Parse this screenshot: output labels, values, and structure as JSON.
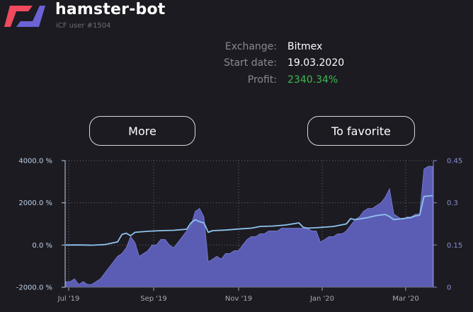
{
  "app": {
    "title": "hamster-bot",
    "subtitle": "iCF user #1504",
    "logo_colors": [
      "#f04a5e",
      "#6b63d6"
    ]
  },
  "info": {
    "exchange_label": "Exchange:",
    "exchange_value": "Bitmex",
    "start_label": "Start date:",
    "start_value": "19.03.2020",
    "profit_label": "Profit:",
    "profit_value": "2340.34%"
  },
  "buttons": {
    "more": "More",
    "favorite": "To favorite"
  },
  "chart_data": {
    "type": "area",
    "x_ticks": [
      "Jul '19",
      "Sep '19",
      "Nov '19",
      "Jan '20",
      "Mar '20"
    ],
    "y_left_ticks": [
      "4000.0 %",
      "2000.0 %",
      "0.0 %",
      "-2000.0 %"
    ],
    "y_right_ticks": [
      "0.45",
      "0.3",
      "0.15",
      "0"
    ],
    "y_left_range": [
      -2000,
      4000
    ],
    "y_right_range": [
      0,
      0.45
    ],
    "grid": true,
    "series": [
      {
        "axis": "right",
        "style": "area",
        "color": "#5b5db5",
        "points": [
          [
            0,
            0.02
          ],
          [
            1,
            0.02
          ],
          [
            2,
            0.03
          ],
          [
            3,
            0.01
          ],
          [
            4,
            0.02
          ],
          [
            5,
            0.01
          ],
          [
            6,
            0.01
          ],
          [
            7,
            0.02
          ],
          [
            8,
            0.03
          ],
          [
            9,
            0.05
          ],
          [
            10,
            0.07
          ],
          [
            11,
            0.09
          ],
          [
            12,
            0.11
          ],
          [
            13,
            0.12
          ],
          [
            14,
            0.14
          ],
          [
            15,
            0.18
          ],
          [
            16,
            0.16
          ],
          [
            17,
            0.11
          ],
          [
            18,
            0.12
          ],
          [
            19,
            0.13
          ],
          [
            20,
            0.15
          ],
          [
            21,
            0.15
          ],
          [
            22,
            0.17
          ],
          [
            23,
            0.17
          ],
          [
            24,
            0.15
          ],
          [
            25,
            0.14
          ],
          [
            26,
            0.16
          ],
          [
            27,
            0.18
          ],
          [
            28,
            0.2
          ],
          [
            29,
            0.22
          ],
          [
            30,
            0.27
          ],
          [
            31,
            0.28
          ],
          [
            32,
            0.25
          ],
          [
            33,
            0.09
          ],
          [
            34,
            0.1
          ],
          [
            35,
            0.11
          ],
          [
            36,
            0.1
          ],
          [
            37,
            0.12
          ],
          [
            38,
            0.12
          ],
          [
            39,
            0.13
          ],
          [
            40,
            0.13
          ],
          [
            41,
            0.15
          ],
          [
            42,
            0.17
          ],
          [
            43,
            0.18
          ],
          [
            44,
            0.18
          ],
          [
            45,
            0.19
          ],
          [
            46,
            0.19
          ],
          [
            47,
            0.2
          ],
          [
            48,
            0.2
          ],
          [
            49,
            0.2
          ],
          [
            50,
            0.21
          ],
          [
            51,
            0.21
          ],
          [
            52,
            0.21
          ],
          [
            53,
            0.21
          ],
          [
            54,
            0.21
          ],
          [
            55,
            0.21
          ],
          [
            56,
            0.21
          ],
          [
            57,
            0.2
          ],
          [
            58,
            0.2
          ],
          [
            59,
            0.16
          ],
          [
            60,
            0.17
          ],
          [
            61,
            0.18
          ],
          [
            62,
            0.18
          ],
          [
            63,
            0.19
          ],
          [
            64,
            0.19
          ],
          [
            65,
            0.2
          ],
          [
            66,
            0.22
          ],
          [
            67,
            0.24
          ],
          [
            68,
            0.25
          ],
          [
            69,
            0.27
          ],
          [
            70,
            0.28
          ],
          [
            71,
            0.28
          ],
          [
            72,
            0.29
          ],
          [
            73,
            0.3
          ],
          [
            74,
            0.32
          ],
          [
            75,
            0.35
          ],
          [
            76,
            0.26
          ],
          [
            77,
            0.25
          ],
          [
            78,
            0.24
          ],
          [
            79,
            0.25
          ],
          [
            80,
            0.25
          ],
          [
            81,
            0.26
          ],
          [
            82,
            0.26
          ],
          [
            83,
            0.42
          ],
          [
            84,
            0.43
          ],
          [
            85,
            0.43
          ]
        ]
      },
      {
        "axis": "left",
        "style": "line",
        "color": "#8ec3ee",
        "points": [
          [
            0,
            0
          ],
          [
            3,
            5
          ],
          [
            6,
            -10
          ],
          [
            9,
            20
          ],
          [
            12,
            150
          ],
          [
            13,
            500
          ],
          [
            14,
            560
          ],
          [
            15,
            440
          ],
          [
            16,
            600
          ],
          [
            19,
            650
          ],
          [
            22,
            680
          ],
          [
            25,
            700
          ],
          [
            28,
            750
          ],
          [
            29,
            1050
          ],
          [
            30,
            1200
          ],
          [
            31,
            1100
          ],
          [
            32,
            1050
          ],
          [
            33,
            600
          ],
          [
            34,
            680
          ],
          [
            37,
            710
          ],
          [
            40,
            760
          ],
          [
            43,
            800
          ],
          [
            45,
            880
          ],
          [
            48,
            900
          ],
          [
            51,
            950
          ],
          [
            54,
            1050
          ],
          [
            55,
            840
          ],
          [
            56,
            800
          ],
          [
            58,
            820
          ],
          [
            60,
            850
          ],
          [
            62,
            880
          ],
          [
            65,
            1000
          ],
          [
            66,
            1250
          ],
          [
            67,
            1200
          ],
          [
            70,
            1300
          ],
          [
            72,
            1400
          ],
          [
            74,
            1450
          ],
          [
            75,
            1350
          ],
          [
            76,
            1200
          ],
          [
            78,
            1250
          ],
          [
            80,
            1300
          ],
          [
            81,
            1380
          ],
          [
            82,
            1420
          ],
          [
            83,
            2300
          ],
          [
            85,
            2340
          ]
        ]
      }
    ]
  }
}
